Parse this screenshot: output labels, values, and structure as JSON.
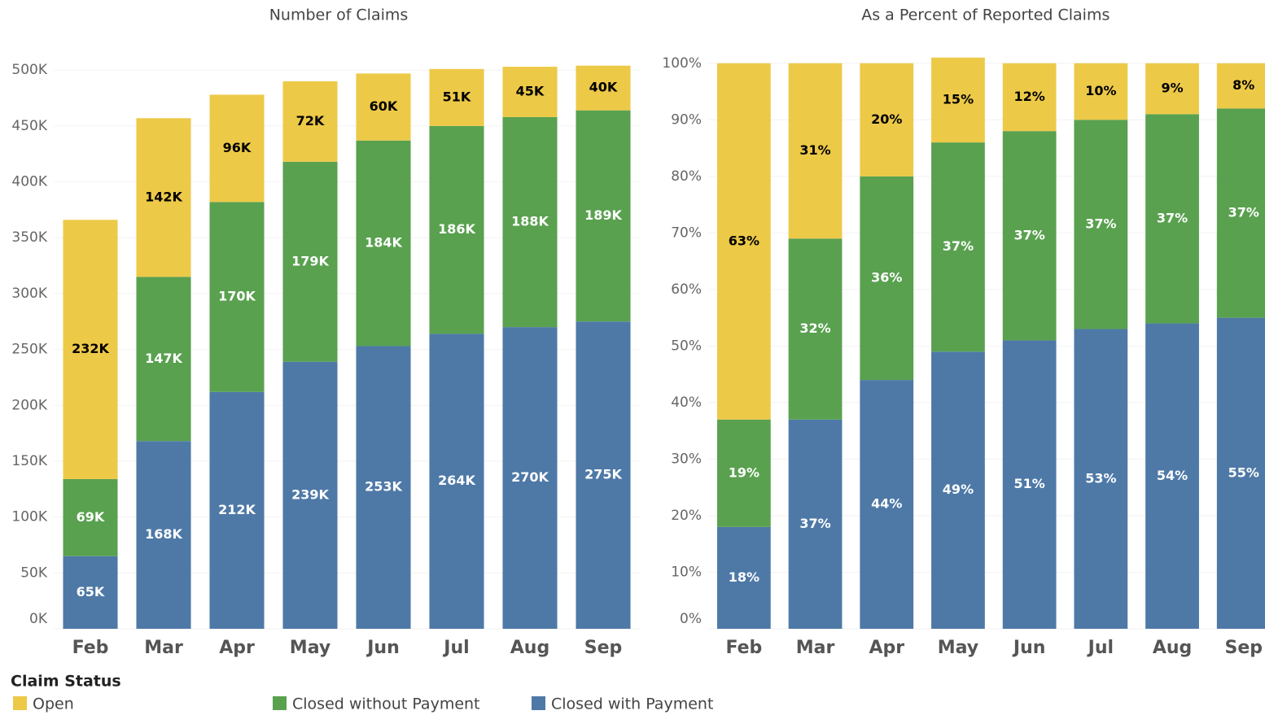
{
  "chart_data": [
    {
      "type": "stacked_bar",
      "title": "Number of Claims",
      "categories": [
        "Feb",
        "Mar",
        "Apr",
        "May",
        "Jun",
        "Jul",
        "Aug",
        "Sep"
      ],
      "legend_title": "Claim Status",
      "series": [
        {
          "name": "Closed with Payment",
          "color": "#4e79a7",
          "label_color": "#ffffff",
          "values": [
            65000,
            168000,
            212000,
            239000,
            253000,
            264000,
            270000,
            275000
          ],
          "value_labels": [
            "65K",
            "168K",
            "212K",
            "239K",
            "253K",
            "264K",
            "270K",
            "275K"
          ]
        },
        {
          "name": "Closed without Payment",
          "color": "#59a14f",
          "label_color": "#ffffff",
          "values": [
            69000,
            147000,
            170000,
            179000,
            184000,
            186000,
            188000,
            189000
          ],
          "value_labels": [
            "69K",
            "147K",
            "170K",
            "179K",
            "184K",
            "186K",
            "188K",
            "189K"
          ]
        },
        {
          "name": "Open",
          "color": "#edc948",
          "label_color": "#000000",
          "values": [
            232000,
            142000,
            96000,
            72000,
            60000,
            51000,
            45000,
            40000
          ],
          "value_labels": [
            "232K",
            "142K",
            "96K",
            "72K",
            "60K",
            "51K",
            "45K",
            "40K"
          ]
        }
      ],
      "legend_order": [
        2,
        1,
        0
      ],
      "ylim": [
        0,
        530000
      ],
      "yticks": [
        {
          "value": 0,
          "label": "0K"
        },
        {
          "value": 50000,
          "label": "50K"
        },
        {
          "value": 100000,
          "label": "100K"
        },
        {
          "value": 150000,
          "label": "150K"
        },
        {
          "value": 200000,
          "label": "200K"
        },
        {
          "value": 250000,
          "label": "250K"
        },
        {
          "value": 300000,
          "label": "300K"
        },
        {
          "value": 350000,
          "label": "350K"
        },
        {
          "value": 400000,
          "label": "400K"
        },
        {
          "value": 450000,
          "label": "450K"
        },
        {
          "value": 500000,
          "label": "500K"
        }
      ],
      "grid": true
    },
    {
      "type": "stacked_bar",
      "title": "As a Percent of Reported Claims",
      "categories": [
        "Feb",
        "Mar",
        "Apr",
        "May",
        "Jun",
        "Jul",
        "Aug",
        "Sep"
      ],
      "series": [
        {
          "color": "#4e79a7",
          "label_color": "#ffffff",
          "values": [
            18,
            37,
            44,
            49,
            51,
            53,
            54,
            55
          ],
          "value_labels": [
            "18%",
            "37%",
            "44%",
            "49%",
            "51%",
            "53%",
            "54%",
            "55%"
          ]
        },
        {
          "color": "#59a14f",
          "label_color": "#ffffff",
          "values": [
            19,
            32,
            36,
            37,
            37,
            37,
            37,
            37
          ],
          "value_labels": [
            "19%",
            "32%",
            "36%",
            "37%",
            "37%",
            "37%",
            "37%",
            "37%"
          ]
        },
        {
          "color": "#edc948",
          "label_color": "#000000",
          "values": [
            63,
            31,
            20,
            15,
            12,
            10,
            9,
            8
          ],
          "value_labels": [
            "63%",
            "31%",
            "20%",
            "15%",
            "12%",
            "10%",
            "9%",
            "8%"
          ]
        }
      ],
      "ylim": [
        0,
        105
      ],
      "yticks": [
        {
          "value": 0,
          "label": "0%"
        },
        {
          "value": 10,
          "label": "10%"
        },
        {
          "value": 20,
          "label": "20%"
        },
        {
          "value": 30,
          "label": "30%"
        },
        {
          "value": 40,
          "label": "40%"
        },
        {
          "value": 50,
          "label": "50%"
        },
        {
          "value": 60,
          "label": "60%"
        },
        {
          "value": 70,
          "label": "70%"
        },
        {
          "value": 80,
          "label": "80%"
        },
        {
          "value": 90,
          "label": "90%"
        },
        {
          "value": 100,
          "label": "100%"
        }
      ],
      "grid": true
    }
  ]
}
